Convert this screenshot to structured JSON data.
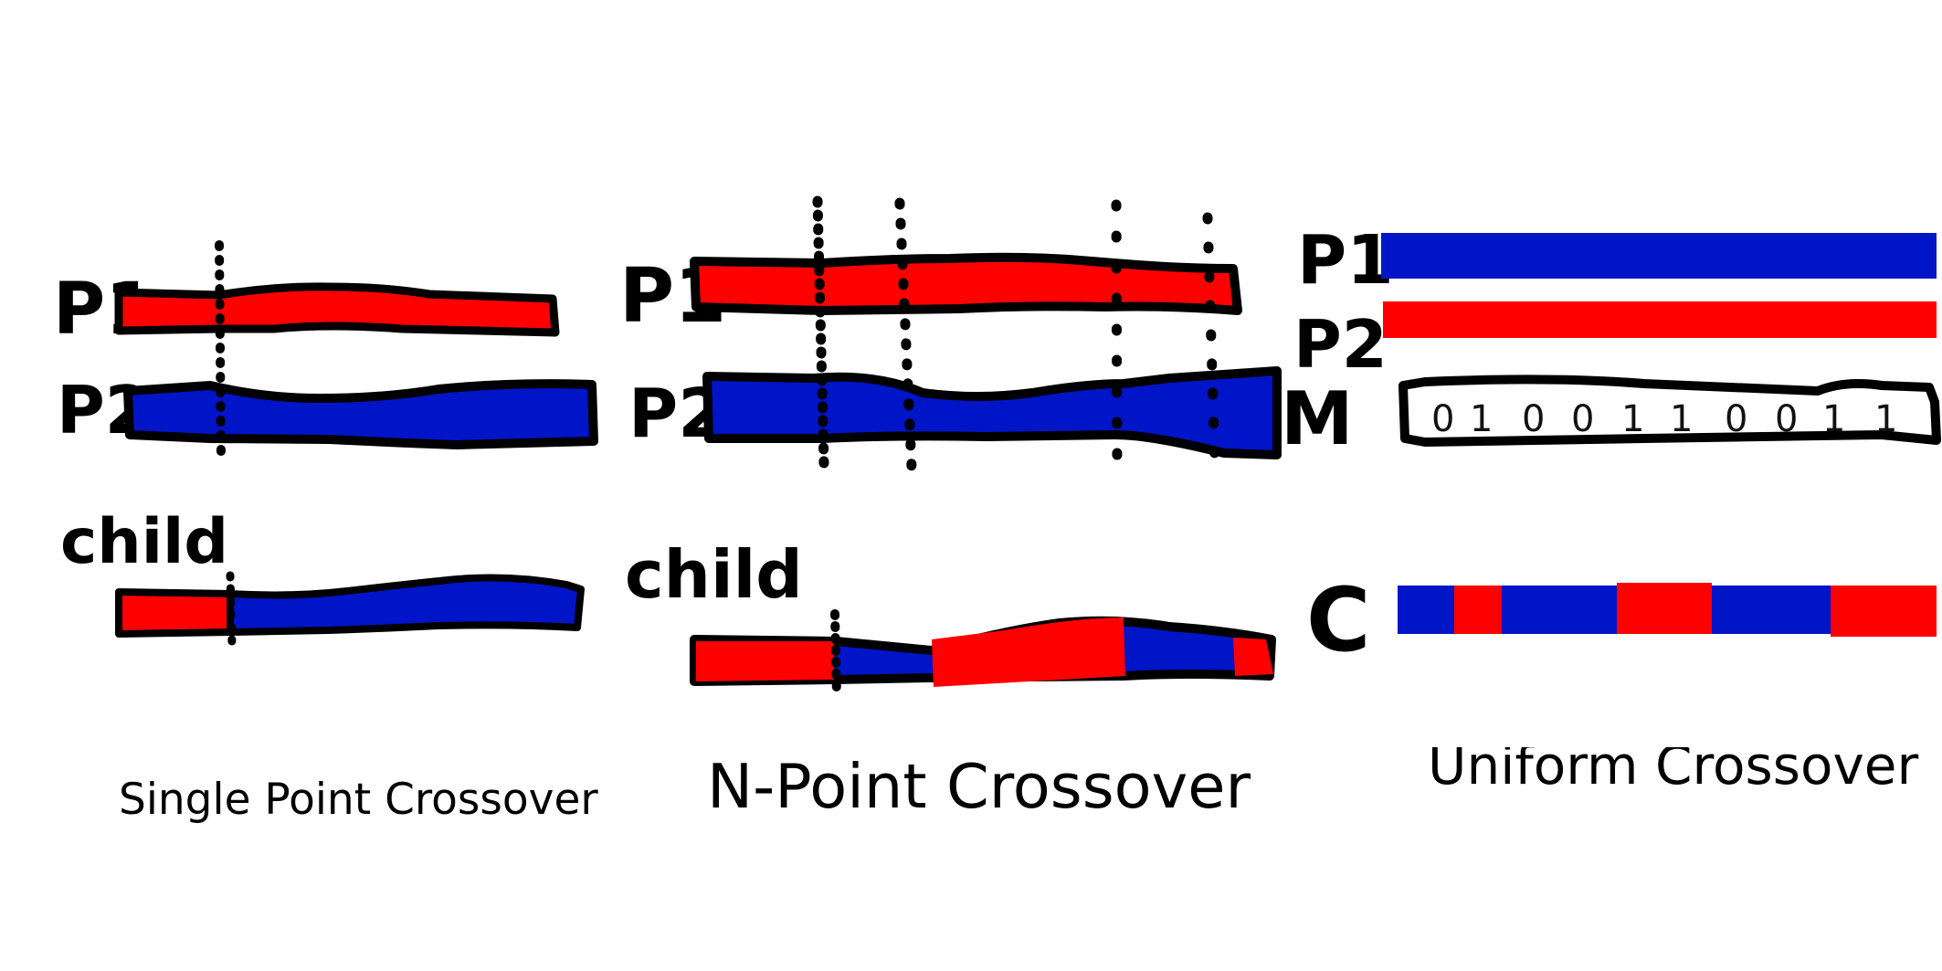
{
  "panels": {
    "single": {
      "caption": "Single Point Crossover",
      "labels": {
        "p1": "P1",
        "p2": "P2",
        "child": "child"
      }
    },
    "npoint": {
      "caption": "N-Point Crossover",
      "labels": {
        "p1": "P1",
        "p2": "P2",
        "child": "child"
      }
    },
    "uniform": {
      "caption": "Uniform Crossover",
      "labels": {
        "p1": "P1",
        "p2": "P2",
        "mask": "M",
        "child": "C"
      },
      "mask_bits": [
        "0",
        "1",
        "0",
        "0",
        "1",
        "1",
        "0",
        "0",
        "1",
        "1"
      ]
    }
  },
  "colors": {
    "parent1": "#ff0000",
    "parent2": "#0014c8",
    "outline": "#000000"
  }
}
